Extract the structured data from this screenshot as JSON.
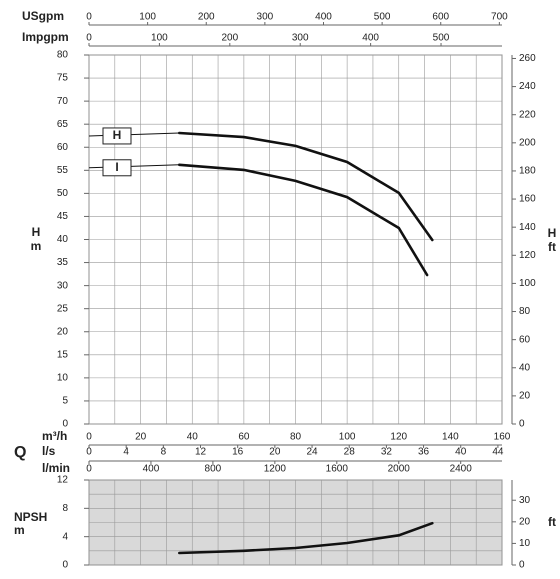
{
  "flow_symbol": "Q",
  "secondary_x_axes": [
    {
      "label": "USgpm",
      "xlim": [
        0,
        704.5
      ],
      "xticks": [
        0,
        100,
        200,
        300,
        400,
        500,
        600,
        700
      ]
    },
    {
      "label": "Impgpm",
      "xlim": [
        0,
        586.6
      ],
      "xticks": [
        0,
        100,
        200,
        300,
        400,
        500
      ]
    },
    {
      "label": "l/s",
      "xlim": [
        0,
        44.44
      ],
      "xticks": [
        0,
        4,
        8,
        12,
        16,
        20,
        24,
        28,
        32,
        36,
        40,
        44
      ]
    },
    {
      "label": "l/min",
      "xlim": [
        0,
        2666.7
      ],
      "xticks": [
        0,
        400,
        800,
        1200,
        1600,
        2000,
        2400
      ]
    }
  ],
  "chart_data": [
    {
      "type": "line",
      "x_label": "m³/h",
      "xlim": [
        0,
        160
      ],
      "xticks": [
        0,
        20,
        40,
        60,
        80,
        100,
        120,
        140,
        160
      ],
      "y_label": "H",
      "y_unit": "m",
      "ylim": [
        0,
        80
      ],
      "yticks": [
        0,
        5,
        10,
        15,
        20,
        25,
        30,
        35,
        40,
        45,
        50,
        55,
        60,
        65,
        70,
        75,
        80
      ],
      "y2_label": "H",
      "y2_unit": "ft",
      "y2lim": [
        0,
        262.47
      ],
      "y2ticks": [
        0,
        20,
        40,
        60,
        80,
        100,
        120,
        140,
        160,
        180,
        200,
        220,
        240,
        260
      ],
      "grid": true,
      "series": [
        {
          "name": "H",
          "color": "#111111",
          "x": [
            35,
            60,
            80,
            100,
            120,
            133
          ],
          "values": [
            63.1,
            62.2,
            60.3,
            56.8,
            50.1,
            39.9
          ]
        },
        {
          "name": "I",
          "color": "#111111",
          "x": [
            35,
            60,
            80,
            100,
            120,
            131
          ],
          "values": [
            56.2,
            55.1,
            52.7,
            49.2,
            42.5,
            32.3
          ]
        }
      ]
    },
    {
      "type": "line",
      "y_label": "NPSH",
      "y_unit": "m",
      "ylim": [
        0,
        12
      ],
      "yticks": [
        0,
        4,
        8,
        12
      ],
      "y2_unit": "ft",
      "y2lim": [
        0,
        39.37
      ],
      "y2ticks": [
        0,
        10,
        20,
        30
      ],
      "grid": true,
      "series": [
        {
          "color": "#111111",
          "x": [
            35,
            60,
            80,
            100,
            120,
            133
          ],
          "values": [
            1.7,
            2.0,
            2.4,
            3.1,
            4.2,
            5.9
          ]
        }
      ]
    }
  ]
}
